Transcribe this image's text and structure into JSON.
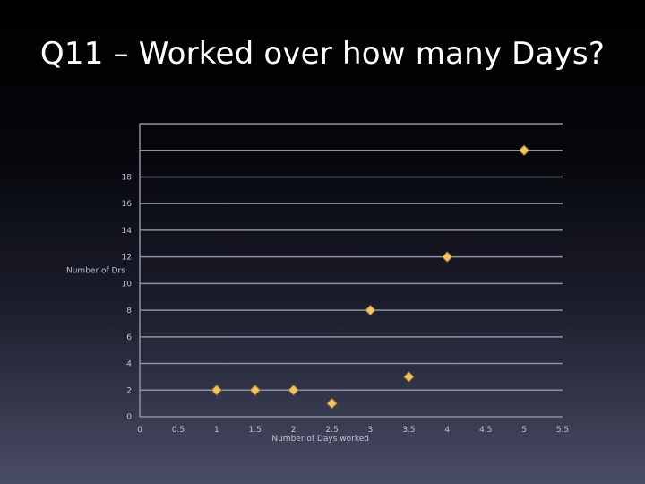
{
  "slide": {
    "title": "Q11 – Worked over how many Days?"
  },
  "colors": {
    "background_top": "#000000",
    "background_bottom": "#4a4d66",
    "gridline": "#8e91a6",
    "marker_fill": "#f2c46a",
    "marker_stroke": "#a27a2a",
    "label_text": "#bfc2d4"
  },
  "chart_data": {
    "type": "scatter",
    "title": "",
    "xlabel": "Number of Days worked",
    "ylabel": "Number of Drs",
    "xlim": [
      0,
      5.5
    ],
    "ylim": [
      0,
      22
    ],
    "x_ticks": [
      "0",
      "0.5",
      "1",
      "1.5",
      "2",
      "2.5",
      "3",
      "3.5",
      "4",
      "4.5",
      "5",
      "5.5"
    ],
    "y_ticks": [
      "0",
      "2",
      "4",
      "6",
      "8",
      "10",
      "12",
      "14",
      "16",
      "18",
      "",
      ""
    ],
    "grid": true,
    "marker": "diamond",
    "points": [
      {
        "x": 1,
        "y": 2
      },
      {
        "x": 1.5,
        "y": 2
      },
      {
        "x": 2,
        "y": 2
      },
      {
        "x": 2.5,
        "y": 1
      },
      {
        "x": 3,
        "y": 8
      },
      {
        "x": 3.5,
        "y": 3
      },
      {
        "x": 4,
        "y": 12
      },
      {
        "x": 5,
        "y": 20
      }
    ]
  }
}
